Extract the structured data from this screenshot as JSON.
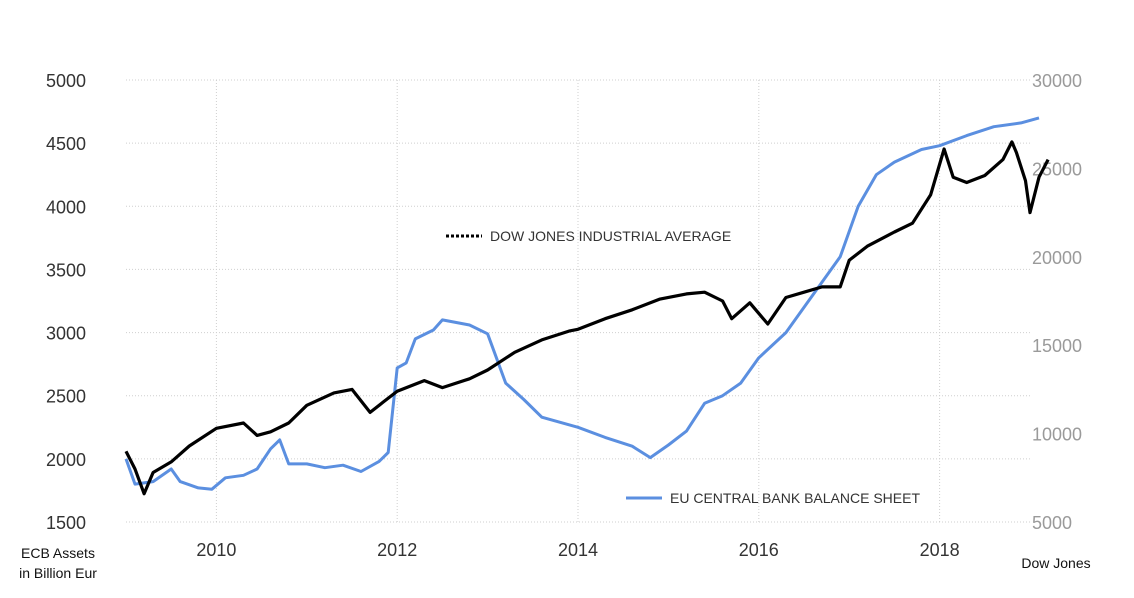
{
  "chart_data": {
    "type": "line",
    "title": "",
    "left_axis": {
      "label_lines": [
        "ECB Assets",
        "in Billion Eur"
      ],
      "range": [
        1500,
        5000
      ],
      "ticks": [
        "5000",
        "4500",
        "4000",
        "3500",
        "3000",
        "2500",
        "2000",
        "1500"
      ]
    },
    "right_axis": {
      "label": "Dow Jones",
      "range": [
        5000,
        30000
      ],
      "ticks": [
        "30000",
        "25000",
        "20000",
        "15000",
        "10000",
        "5000"
      ]
    },
    "x_axis": {
      "range": [
        2009.0,
        2019.0
      ],
      "ticks": [
        "2010",
        "2012",
        "2014",
        "2016",
        "2018"
      ]
    },
    "grid": true,
    "series": [
      {
        "name": "DOW JONES INDUSTRIAL AVERAGE",
        "axis": "right",
        "color": "#000000",
        "points": [
          [
            2009.0,
            9000
          ],
          [
            2009.1,
            8000
          ],
          [
            2009.2,
            6600
          ],
          [
            2009.3,
            7800
          ],
          [
            2009.5,
            8400
          ],
          [
            2009.7,
            9300
          ],
          [
            2010.0,
            10300
          ],
          [
            2010.3,
            10600
          ],
          [
            2010.45,
            9900
          ],
          [
            2010.6,
            10100
          ],
          [
            2010.8,
            10600
          ],
          [
            2011.0,
            11600
          ],
          [
            2011.3,
            12300
          ],
          [
            2011.5,
            12500
          ],
          [
            2011.7,
            11200
          ],
          [
            2011.85,
            11800
          ],
          [
            2012.0,
            12400
          ],
          [
            2012.3,
            13000
          ],
          [
            2012.5,
            12600
          ],
          [
            2012.8,
            13100
          ],
          [
            2013.0,
            13600
          ],
          [
            2013.3,
            14600
          ],
          [
            2013.6,
            15300
          ],
          [
            2013.9,
            15800
          ],
          [
            2014.0,
            15900
          ],
          [
            2014.3,
            16500
          ],
          [
            2014.6,
            17000
          ],
          [
            2014.9,
            17600
          ],
          [
            2015.2,
            17900
          ],
          [
            2015.4,
            18000
          ],
          [
            2015.6,
            17500
          ],
          [
            2015.7,
            16500
          ],
          [
            2015.9,
            17400
          ],
          [
            2016.1,
            16200
          ],
          [
            2016.3,
            17700
          ],
          [
            2016.5,
            18000
          ],
          [
            2016.7,
            18300
          ],
          [
            2016.9,
            18300
          ],
          [
            2017.0,
            19800
          ],
          [
            2017.2,
            20600
          ],
          [
            2017.5,
            21400
          ],
          [
            2017.7,
            21900
          ],
          [
            2017.9,
            23500
          ],
          [
            2018.05,
            26100
          ],
          [
            2018.15,
            24500
          ],
          [
            2018.3,
            24200
          ],
          [
            2018.5,
            24600
          ],
          [
            2018.7,
            25500
          ],
          [
            2018.8,
            26500
          ],
          [
            2018.85,
            25900
          ],
          [
            2018.95,
            24300
          ],
          [
            2019.0,
            22500
          ],
          [
            2019.1,
            24500
          ],
          [
            2019.2,
            25500
          ]
        ]
      },
      {
        "name": "EU CENTRAL BANK BALANCE SHEET",
        "axis": "left",
        "color": "#5b8fe0",
        "points": [
          [
            2009.0,
            2000
          ],
          [
            2009.1,
            1800
          ],
          [
            2009.3,
            1820
          ],
          [
            2009.5,
            1920
          ],
          [
            2009.6,
            1820
          ],
          [
            2009.8,
            1770
          ],
          [
            2009.95,
            1760
          ],
          [
            2010.1,
            1850
          ],
          [
            2010.3,
            1870
          ],
          [
            2010.45,
            1920
          ],
          [
            2010.6,
            2080
          ],
          [
            2010.7,
            2150
          ],
          [
            2010.8,
            1960
          ],
          [
            2011.0,
            1960
          ],
          [
            2011.2,
            1930
          ],
          [
            2011.4,
            1950
          ],
          [
            2011.6,
            1900
          ],
          [
            2011.8,
            1980
          ],
          [
            2011.9,
            2050
          ],
          [
            2012.0,
            2720
          ],
          [
            2012.1,
            2760
          ],
          [
            2012.2,
            2950
          ],
          [
            2012.4,
            3020
          ],
          [
            2012.5,
            3100
          ],
          [
            2012.8,
            3060
          ],
          [
            2013.0,
            2990
          ],
          [
            2013.2,
            2600
          ],
          [
            2013.4,
            2470
          ],
          [
            2013.6,
            2330
          ],
          [
            2014.0,
            2250
          ],
          [
            2014.3,
            2170
          ],
          [
            2014.6,
            2100
          ],
          [
            2014.8,
            2010
          ],
          [
            2015.0,
            2110
          ],
          [
            2015.2,
            2220
          ],
          [
            2015.4,
            2440
          ],
          [
            2015.6,
            2500
          ],
          [
            2015.8,
            2600
          ],
          [
            2016.0,
            2800
          ],
          [
            2016.3,
            3000
          ],
          [
            2016.6,
            3300
          ],
          [
            2016.9,
            3600
          ],
          [
            2017.1,
            4000
          ],
          [
            2017.3,
            4250
          ],
          [
            2017.5,
            4350
          ],
          [
            2017.8,
            4450
          ],
          [
            2018.0,
            4480
          ],
          [
            2018.3,
            4560
          ],
          [
            2018.6,
            4630
          ],
          [
            2018.9,
            4660
          ],
          [
            2019.1,
            4700
          ]
        ]
      }
    ]
  }
}
